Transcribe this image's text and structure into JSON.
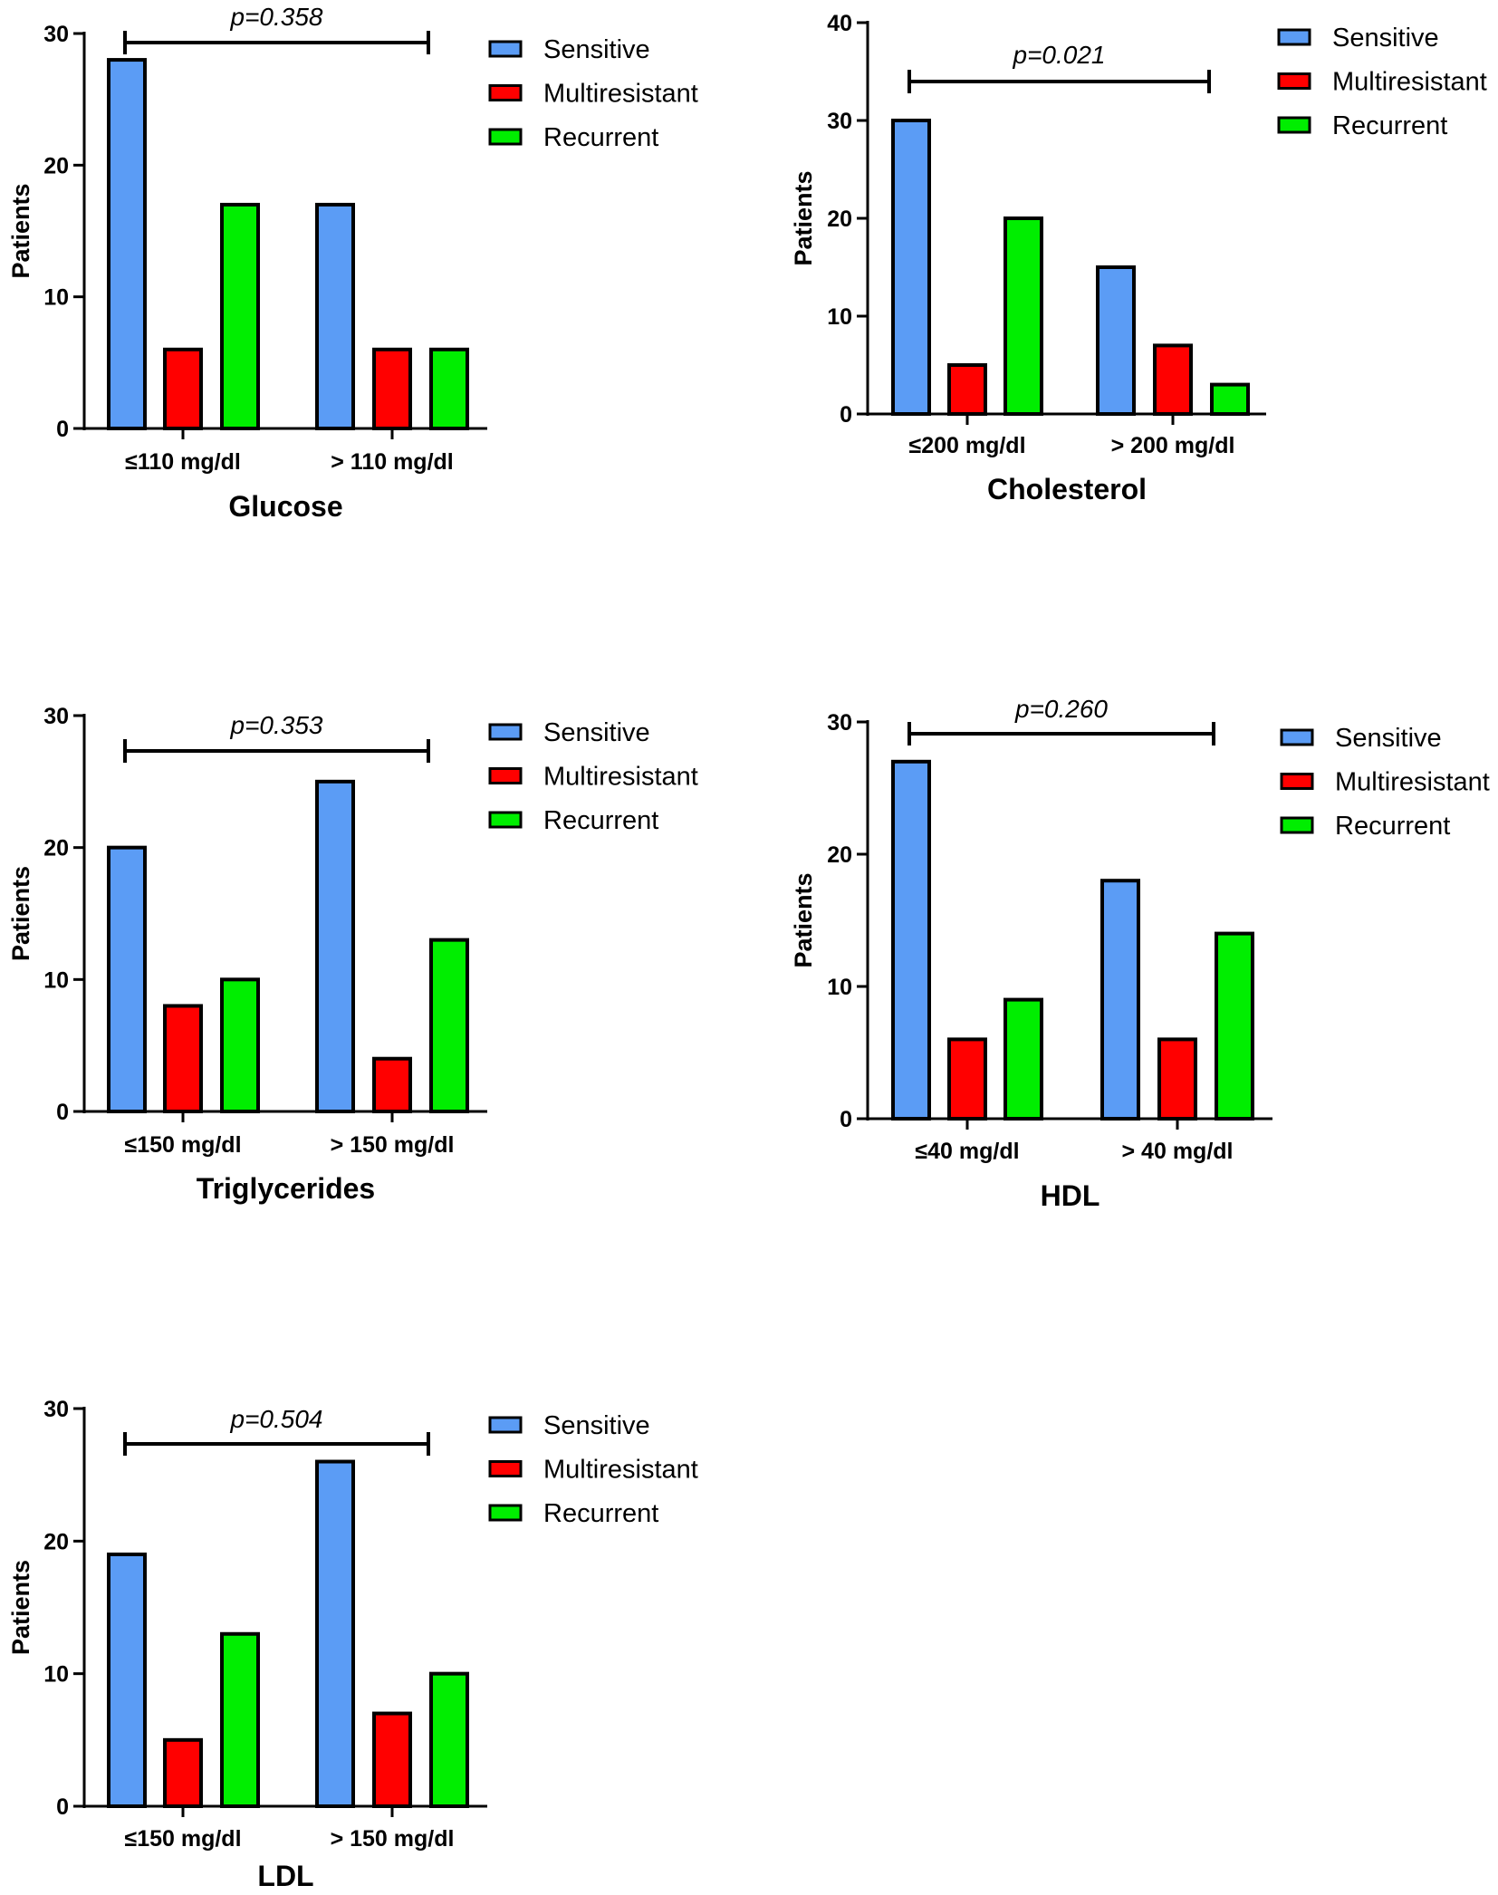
{
  "legend": {
    "labels": [
      "Sensitive",
      "Multiresistant",
      "Recurrent"
    ],
    "colors": [
      "#5b9cf5",
      "#ff0000",
      "#00ee00"
    ]
  },
  "chart_data": [
    {
      "type": "bar",
      "title": "Glucose",
      "ylabel": "Patients",
      "ylim": [
        0,
        30
      ],
      "yticks": [
        0,
        10,
        20,
        30
      ],
      "categories": [
        "≤110 mg/dl",
        "> 110 mg/dl"
      ],
      "series": [
        {
          "name": "Sensitive",
          "values": [
            28,
            17
          ]
        },
        {
          "name": "Multiresistant",
          "values": [
            6,
            6
          ]
        },
        {
          "name": "Recurrent",
          "values": [
            17,
            6
          ]
        }
      ],
      "annotation": "p=0.358",
      "grid": false,
      "legend_position": "right"
    },
    {
      "type": "bar",
      "title": "Cholesterol",
      "ylabel": "Patients",
      "ylim": [
        0,
        40
      ],
      "yticks": [
        0,
        10,
        20,
        30,
        40
      ],
      "categories": [
        "≤200 mg/dl",
        "> 200 mg/dl"
      ],
      "series": [
        {
          "name": "Sensitive",
          "values": [
            30,
            15
          ]
        },
        {
          "name": "Multiresistant",
          "values": [
            5,
            7
          ]
        },
        {
          "name": "Recurrent",
          "values": [
            20,
            3
          ]
        }
      ],
      "annotation": "p=0.021",
      "grid": false,
      "legend_position": "right"
    },
    {
      "type": "bar",
      "title": "Triglycerides",
      "ylabel": "Patients",
      "ylim": [
        0,
        30
      ],
      "yticks": [
        0,
        10,
        20,
        30
      ],
      "categories": [
        "≤150 mg/dl",
        "> 150 mg/dl"
      ],
      "series": [
        {
          "name": "Sensitive",
          "values": [
            20,
            25
          ]
        },
        {
          "name": "Multiresistant",
          "values": [
            8,
            4
          ]
        },
        {
          "name": "Recurrent",
          "values": [
            10,
            13
          ]
        }
      ],
      "annotation": "p=0.353",
      "grid": false,
      "legend_position": "right"
    },
    {
      "type": "bar",
      "title": "HDL",
      "ylabel": "Patients",
      "ylim": [
        0,
        30
      ],
      "yticks": [
        0,
        10,
        20,
        30
      ],
      "categories": [
        "≤40 mg/dl",
        "> 40 mg/dl"
      ],
      "series": [
        {
          "name": "Sensitive",
          "values": [
            27,
            18
          ]
        },
        {
          "name": "Multiresistant",
          "values": [
            6,
            6
          ]
        },
        {
          "name": "Recurrent",
          "values": [
            9,
            14
          ]
        }
      ],
      "annotation": "p=0.260",
      "grid": false,
      "legend_position": "right"
    },
    {
      "type": "bar",
      "title": "LDL",
      "ylabel": "Patients",
      "ylim": [
        0,
        30
      ],
      "yticks": [
        0,
        10,
        20,
        30
      ],
      "categories": [
        "≤150 mg/dl",
        "> 150 mg/dl"
      ],
      "series": [
        {
          "name": "Sensitive",
          "values": [
            19,
            26
          ]
        },
        {
          "name": "Multiresistant",
          "values": [
            5,
            7
          ]
        },
        {
          "name": "Recurrent",
          "values": [
            13,
            10
          ]
        }
      ],
      "annotation": "p=0.504",
      "grid": false,
      "legend_position": "right"
    }
  ]
}
